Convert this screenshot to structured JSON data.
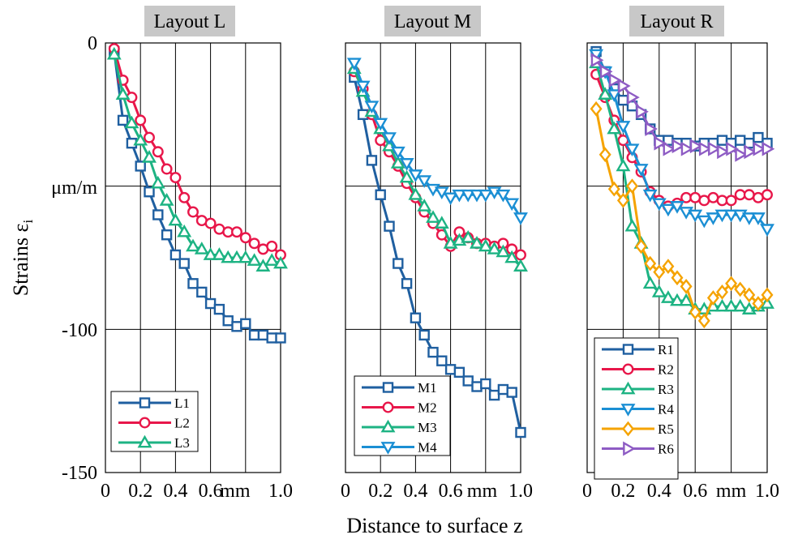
{
  "figure": {
    "ylabel_main": "Strains ε",
    "ylabel_sub": "i",
    "xlabel": "Distance to surface z",
    "y_unit_label": "μm/m",
    "y_ticks": [
      {
        "value": 0,
        "label": "0"
      },
      {
        "value": -100,
        "label": "-100"
      },
      {
        "value": -150,
        "label": "-150"
      }
    ]
  },
  "colors": {
    "blue_dark": "#1F5FA0",
    "red": "#E8174A",
    "green": "#1DB383",
    "blue_light": "#1B8FD4",
    "orange": "#F5A300",
    "purple": "#8E5CC4",
    "title_bg": "#C8C8C8"
  },
  "chart_data": [
    {
      "type": "line",
      "title": "Layout L",
      "xlim": [
        0,
        1.0
      ],
      "ylim": [
        -150,
        0
      ],
      "x_tick_labels": [
        {
          "value": 0,
          "label": "0"
        },
        {
          "value": 0.2,
          "label": "0.2"
        },
        {
          "value": 0.4,
          "label": "0.4"
        },
        {
          "value": 0.6,
          "label": "0.6"
        },
        {
          "value": 0.74,
          "label": "mm"
        },
        {
          "value": 1.0,
          "label": "1.0"
        }
      ],
      "legend_position": "bottom-left",
      "series": [
        {
          "name": "L1",
          "color": "blue_dark",
          "marker": "square",
          "x": [
            0.05,
            0.1,
            0.15,
            0.2,
            0.25,
            0.3,
            0.35,
            0.4,
            0.45,
            0.5,
            0.55,
            0.6,
            0.65,
            0.7,
            0.75,
            0.8,
            0.85,
            0.9,
            0.95,
            1.0
          ],
          "y": [
            -3,
            -27,
            -35,
            -43,
            -52,
            -60,
            -67,
            -74,
            -77,
            -84,
            -87,
            -91,
            -93,
            -97,
            -99,
            -98,
            -102,
            -102,
            -103,
            -103
          ]
        },
        {
          "name": "L2",
          "color": "red",
          "marker": "circle",
          "x": [
            0.05,
            0.1,
            0.15,
            0.2,
            0.25,
            0.3,
            0.35,
            0.4,
            0.45,
            0.5,
            0.55,
            0.6,
            0.65,
            0.7,
            0.75,
            0.8,
            0.85,
            0.9,
            0.95,
            1.0
          ],
          "y": [
            -2,
            -13,
            -19,
            -27,
            -33,
            -38,
            -44,
            -47,
            -54,
            -59,
            -62,
            -63,
            -65,
            -66,
            -66,
            -68,
            -70,
            -72,
            -71,
            -74
          ]
        },
        {
          "name": "L3",
          "color": "green",
          "marker": "triangle-up",
          "x": [
            0.05,
            0.1,
            0.15,
            0.2,
            0.25,
            0.3,
            0.35,
            0.4,
            0.45,
            0.5,
            0.55,
            0.6,
            0.65,
            0.7,
            0.75,
            0.8,
            0.85,
            0.9,
            0.95,
            1.0
          ],
          "y": [
            -4,
            -18,
            -28,
            -34,
            -40,
            -49,
            -55,
            -62,
            -66,
            -71,
            -72,
            -74,
            -74,
            -75,
            -75,
            -75,
            -76,
            -78,
            -76,
            -77
          ]
        }
      ]
    },
    {
      "type": "line",
      "title": "Layout M",
      "xlim": [
        0,
        1.0
      ],
      "ylim": [
        -150,
        0
      ],
      "x_tick_labels": [
        {
          "value": 0,
          "label": "0"
        },
        {
          "value": 0.2,
          "label": "0.2"
        },
        {
          "value": 0.4,
          "label": "0.4"
        },
        {
          "value": 0.6,
          "label": "0.6"
        },
        {
          "value": 0.78,
          "label": "mm"
        },
        {
          "value": 1.0,
          "label": "1.0"
        }
      ],
      "legend_position": "bottom-left",
      "series": [
        {
          "name": "M1",
          "color": "blue_dark",
          "marker": "square",
          "x": [
            0.05,
            0.1,
            0.15,
            0.2,
            0.25,
            0.3,
            0.35,
            0.4,
            0.45,
            0.5,
            0.55,
            0.6,
            0.65,
            0.7,
            0.75,
            0.8,
            0.85,
            0.9,
            0.95,
            1.0
          ],
          "y": [
            -12,
            -25,
            -41,
            -53,
            -64,
            -77,
            -84,
            -96,
            -102,
            -108,
            -111,
            -114,
            -115,
            -118,
            -120,
            -119,
            -123,
            -121,
            -122,
            -136
          ]
        },
        {
          "name": "M2",
          "color": "red",
          "marker": "circle",
          "x": [
            0.05,
            0.1,
            0.15,
            0.2,
            0.25,
            0.3,
            0.35,
            0.4,
            0.45,
            0.5,
            0.55,
            0.6,
            0.65,
            0.7,
            0.75,
            0.8,
            0.85,
            0.9,
            0.95,
            1.0
          ],
          "y": [
            -10,
            -16,
            -25,
            -34,
            -38,
            -43,
            -49,
            -54,
            -59,
            -63,
            -67,
            -71,
            -66,
            -68,
            -70,
            -70,
            -71,
            -70,
            -72,
            -74
          ]
        },
        {
          "name": "M3",
          "color": "green",
          "marker": "triangle-up",
          "x": [
            0.05,
            0.1,
            0.15,
            0.2,
            0.25,
            0.3,
            0.35,
            0.4,
            0.45,
            0.5,
            0.55,
            0.6,
            0.65,
            0.7,
            0.75,
            0.8,
            0.85,
            0.9,
            0.95,
            1.0
          ],
          "y": [
            -9,
            -17,
            -24,
            -30,
            -36,
            -42,
            -47,
            -53,
            -57,
            -61,
            -63,
            -70,
            -69,
            -68,
            -70,
            -71,
            -72,
            -73,
            -75,
            -78
          ]
        },
        {
          "name": "M4",
          "color": "blue_light",
          "marker": "triangle-down",
          "x": [
            0.05,
            0.1,
            0.15,
            0.2,
            0.25,
            0.3,
            0.35,
            0.4,
            0.45,
            0.5,
            0.55,
            0.6,
            0.65,
            0.7,
            0.75,
            0.8,
            0.85,
            0.9,
            0.95,
            1.0
          ],
          "y": [
            -7,
            -15,
            -22,
            -28,
            -33,
            -38,
            -42,
            -46,
            -48,
            -51,
            -52,
            -54,
            -53,
            -53,
            -53,
            -53,
            -52,
            -53,
            -56,
            -61
          ]
        }
      ]
    },
    {
      "type": "line",
      "title": "Layout R",
      "xlim": [
        0,
        1.0
      ],
      "ylim": [
        -150,
        0
      ],
      "x_tick_labels": [
        {
          "value": 0,
          "label": "0"
        },
        {
          "value": 0.2,
          "label": "0.2"
        },
        {
          "value": 0.4,
          "label": "0.4"
        },
        {
          "value": 0.6,
          "label": "0.6"
        },
        {
          "value": 0.8,
          "label": "mm"
        },
        {
          "value": 1.0,
          "label": "1.0"
        }
      ],
      "legend_position": "bottom-left",
      "series": [
        {
          "name": "R1",
          "color": "blue_dark",
          "marker": "square",
          "x": [
            0.05,
            0.1,
            0.15,
            0.2,
            0.25,
            0.3,
            0.35,
            0.4,
            0.45,
            0.5,
            0.55,
            0.6,
            0.65,
            0.7,
            0.75,
            0.8,
            0.85,
            0.9,
            0.95,
            1.0
          ],
          "y": [
            -3,
            -10,
            -16,
            -20,
            -22,
            -25,
            -30,
            -34,
            -34,
            -35,
            -35,
            -36,
            -35,
            -35,
            -34,
            -35,
            -34,
            -35,
            -33,
            -35
          ]
        },
        {
          "name": "R2",
          "color": "red",
          "marker": "circle",
          "x": [
            0.05,
            0.1,
            0.15,
            0.2,
            0.25,
            0.3,
            0.35,
            0.4,
            0.45,
            0.5,
            0.55,
            0.6,
            0.65,
            0.7,
            0.75,
            0.8,
            0.85,
            0.9,
            0.95,
            1.0
          ],
          "y": [
            -11,
            -19,
            -27,
            -34,
            -40,
            -45,
            -52,
            -55,
            -57,
            -56,
            -54,
            -54,
            -55,
            -54,
            -55,
            -55,
            -53,
            -53,
            -54,
            -53
          ]
        },
        {
          "name": "R3",
          "color": "green",
          "marker": "triangle-up",
          "x": [
            0.05,
            0.1,
            0.15,
            0.2,
            0.25,
            0.3,
            0.35,
            0.4,
            0.45,
            0.5,
            0.55,
            0.6,
            0.65,
            0.7,
            0.75,
            0.8,
            0.85,
            0.9,
            0.95,
            1.0
          ],
          "y": [
            -7,
            -18,
            -30,
            -43,
            -64,
            -70,
            -84,
            -87,
            -89,
            -90,
            -90,
            -93,
            -93,
            -92,
            -92,
            -92,
            -92,
            -93,
            -92,
            -91
          ]
        },
        {
          "name": "R4",
          "color": "blue_light",
          "marker": "triangle-down",
          "x": [
            0.05,
            0.1,
            0.15,
            0.2,
            0.25,
            0.3,
            0.35,
            0.4,
            0.45,
            0.5,
            0.55,
            0.6,
            0.65,
            0.7,
            0.75,
            0.8,
            0.85,
            0.9,
            0.95,
            1.0
          ],
          "y": [
            -4,
            -10,
            -18,
            -29,
            -37,
            -44,
            -53,
            -56,
            -58,
            -57,
            -59,
            -60,
            -62,
            -61,
            -60,
            -60,
            -60,
            -61,
            -61,
            -65
          ]
        },
        {
          "name": "R5",
          "color": "orange",
          "marker": "diamond",
          "x": [
            0.05,
            0.1,
            0.15,
            0.2,
            0.25,
            0.3,
            0.35,
            0.4,
            0.45,
            0.5,
            0.55,
            0.6,
            0.65,
            0.7,
            0.75,
            0.8,
            0.85,
            0.9,
            0.95,
            1.0
          ],
          "y": [
            -23,
            -39,
            -51,
            -55,
            -50,
            -71,
            -77,
            -80,
            -78,
            -82,
            -85,
            -94,
            -97,
            -89,
            -87,
            -84,
            -86,
            -88,
            -91,
            -88
          ]
        },
        {
          "name": "R6",
          "color": "purple",
          "marker": "triangle-right",
          "x": [
            0.05,
            0.1,
            0.15,
            0.2,
            0.25,
            0.3,
            0.35,
            0.4,
            0.45,
            0.5,
            0.55,
            0.6,
            0.65,
            0.7,
            0.75,
            0.8,
            0.85,
            0.9,
            0.95,
            1.0
          ],
          "y": [
            -6,
            -10,
            -13,
            -15,
            -19,
            -24,
            -30,
            -35,
            -37,
            -36,
            -37,
            -36,
            -37,
            -37,
            -38,
            -37,
            -39,
            -38,
            -37,
            -37
          ]
        }
      ]
    }
  ]
}
